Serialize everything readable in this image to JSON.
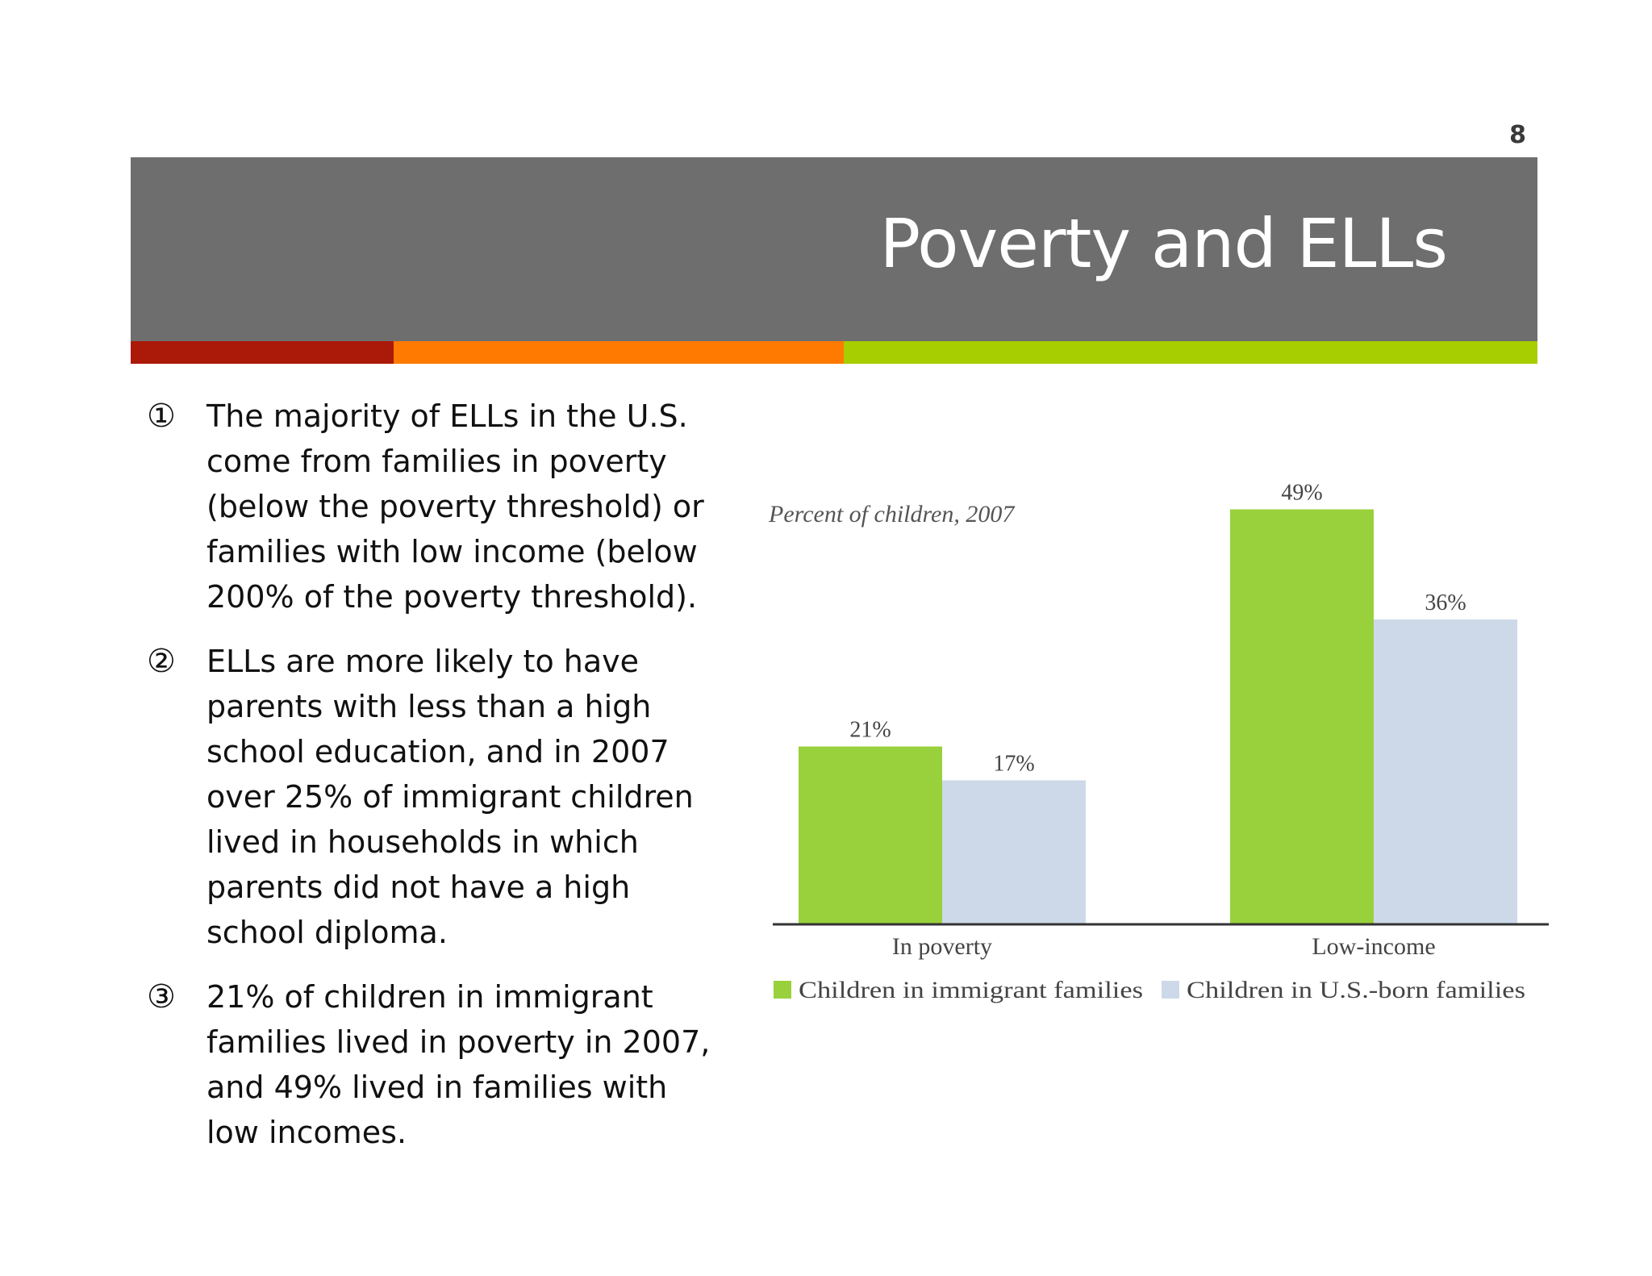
{
  "slide": {
    "page_number": "8",
    "title": "Poverty and ELLs"
  },
  "bullets": [
    {
      "marker": "①",
      "text": "The majority of ELLs in the U.S. come from families in poverty (below the poverty threshold) or families with low income (below 200% of the poverty threshold)."
    },
    {
      "marker": "②",
      "text": "ELLs are more likely to have parents with less than a high school education, and in 2007 over 25% of immigrant children lived in households in which parents did not have a high school diploma."
    },
    {
      "marker": "③",
      "text": "21% of children in immigrant families lived in poverty in 2007, and 49% lived in families with low incomes."
    }
  ],
  "colors": {
    "header": "#6e6e6e",
    "stripe_red": "#ab1a08",
    "stripe_orange": "#ff7a00",
    "stripe_green": "#a6ce00",
    "immigrant": "#98d13b",
    "us_born": "#cdd9e8"
  },
  "chart_data": {
    "type": "bar",
    "title": "Percent of children, 2007",
    "categories": [
      "In poverty",
      "Low-income"
    ],
    "series": [
      {
        "name": "Children in immigrant families",
        "values": [
          21,
          49
        ],
        "labels": [
          "21%",
          "49%"
        ],
        "color": "#98d13b"
      },
      {
        "name": "Children in U.S.-born families",
        "values": [
          17,
          36
        ],
        "labels": [
          "17%",
          "36%"
        ],
        "color": "#cdd9e8"
      }
    ],
    "ylim": [
      0,
      52
    ],
    "grid": false,
    "legend": "bottom"
  }
}
